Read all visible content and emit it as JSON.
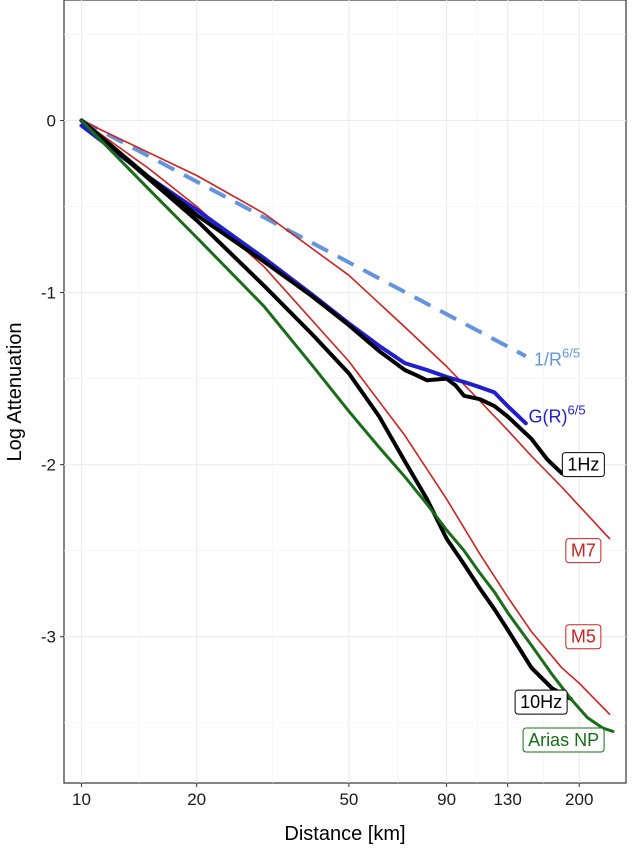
{
  "chart_data": {
    "type": "line",
    "xlabel": "Distance [km]",
    "ylabel": "Log Attenuation",
    "x_scale": "log",
    "xlim": [
      9,
      265
    ],
    "ylim": [
      -3.85,
      0.7
    ],
    "x_ticks": [
      10,
      20,
      50,
      90,
      130,
      200
    ],
    "x_tick_labels": [
      "10",
      "20",
      "50",
      "90",
      "130",
      "200"
    ],
    "y_ticks": [
      0,
      -1,
      -2,
      -3
    ],
    "y_tick_labels": [
      "0",
      "-1",
      "-2",
      "-3"
    ],
    "grid": true,
    "colors": {
      "geom_1_over_R": "#6495dc",
      "gr": "#1f1fcc",
      "one_hz": "#000000",
      "ten_hz": "#000000",
      "m7": "#cc2222",
      "m5": "#cc2222",
      "arias": "#1a6b1a"
    },
    "series": [
      {
        "key": "geom_1_over_R",
        "style": "dashed",
        "x": [
          10,
          145
        ],
        "y": [
          0,
          -1.37
        ]
      },
      {
        "key": "m7",
        "style": "thin",
        "x": [
          10,
          20,
          30,
          50,
          70,
          90,
          110,
          130,
          150,
          180,
          200,
          240
        ],
        "y": [
          0,
          -0.32,
          -0.54,
          -0.9,
          -1.2,
          -1.43,
          -1.63,
          -1.8,
          -1.95,
          -2.13,
          -2.24,
          -2.43
        ]
      },
      {
        "key": "m5",
        "style": "thin",
        "x": [
          10,
          15,
          20,
          30,
          50,
          70,
          90,
          110,
          130,
          150,
          180,
          200,
          240
        ],
        "y": [
          0,
          -0.28,
          -0.5,
          -0.85,
          -1.4,
          -1.83,
          -2.2,
          -2.52,
          -2.77,
          -2.97,
          -3.18,
          -3.27,
          -3.45
        ]
      },
      {
        "key": "gr",
        "style": "thick",
        "x": [
          10,
          15,
          20,
          30,
          40,
          50,
          60,
          70,
          80,
          90,
          100,
          110,
          120,
          130,
          145
        ],
        "y": [
          -0.03,
          -0.33,
          -0.52,
          -0.8,
          -1.01,
          -1.18,
          -1.31,
          -1.41,
          -1.45,
          -1.49,
          -1.52,
          -1.55,
          -1.58,
          -1.66,
          -1.76
        ]
      },
      {
        "key": "one_hz",
        "style": "thick",
        "x": [
          10,
          15,
          20,
          30,
          40,
          50,
          60,
          70,
          75,
          80,
          90,
          95,
          100,
          110,
          120,
          130,
          150,
          165,
          180
        ],
        "y": [
          0,
          -0.33,
          -0.55,
          -0.82,
          -1.02,
          -1.19,
          -1.34,
          -1.45,
          -1.48,
          -1.51,
          -1.5,
          -1.54,
          -1.6,
          -1.62,
          -1.66,
          -1.72,
          -1.85,
          -1.97,
          -2.05
        ]
      },
      {
        "key": "ten_hz",
        "style": "thick",
        "x": [
          10,
          15,
          20,
          30,
          40,
          50,
          60,
          70,
          80,
          90,
          100,
          110,
          120,
          130,
          150,
          170,
          190
        ],
        "y": [
          0,
          -0.34,
          -0.58,
          -0.96,
          -1.24,
          -1.47,
          -1.72,
          -1.98,
          -2.2,
          -2.43,
          -2.58,
          -2.72,
          -2.84,
          -2.96,
          -3.18,
          -3.3,
          -3.36
        ]
      },
      {
        "key": "arias",
        "style": "medium",
        "x": [
          10,
          15,
          20,
          30,
          40,
          50,
          60,
          70,
          80,
          90,
          100,
          110,
          120,
          130,
          150,
          170,
          190,
          210,
          230,
          245
        ],
        "y": [
          0,
          -0.4,
          -0.68,
          -1.08,
          -1.42,
          -1.69,
          -1.9,
          -2.07,
          -2.23,
          -2.38,
          -2.5,
          -2.63,
          -2.74,
          -2.86,
          -3.05,
          -3.22,
          -3.36,
          -3.47,
          -3.53,
          -3.55
        ]
      }
    ],
    "annotations": [
      {
        "key": "geom_1_over_R",
        "text": "1/R",
        "sup": "6/5",
        "boxed": false,
        "x": 175,
        "y": -1.39
      },
      {
        "key": "gr",
        "text": "G(R)",
        "sup": "6/5",
        "boxed": false,
        "x": 175,
        "y": -1.72
      },
      {
        "key": "one_hz",
        "text": "1Hz",
        "boxed": true,
        "x": 205,
        "y": -2.0
      },
      {
        "key": "m7",
        "text": "M7",
        "boxed": true,
        "x": 205,
        "y": -2.5
      },
      {
        "key": "m5",
        "text": "M5",
        "boxed": true,
        "x": 205,
        "y": -3.0
      },
      {
        "key": "ten_hz",
        "text": "10Hz",
        "boxed": true,
        "x": 159,
        "y": -3.38
      },
      {
        "key": "arias",
        "text": "Arias NP",
        "boxed": true,
        "x": 182,
        "y": -3.6
      }
    ]
  }
}
